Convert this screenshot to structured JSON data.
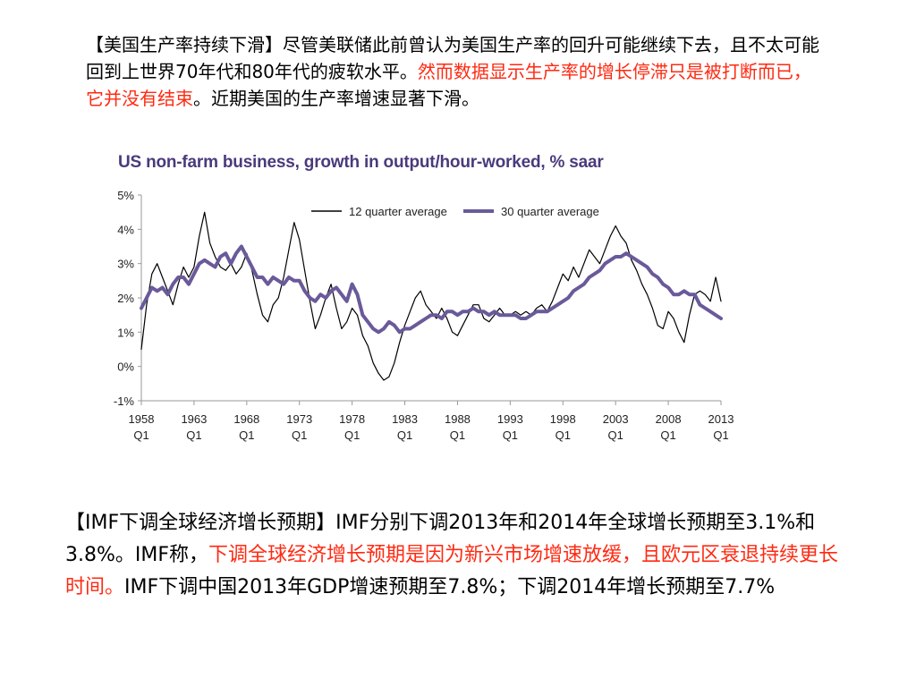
{
  "para1": {
    "text_a": "【美国生产率持续下滑】尽管美联储此前曾认为美国生产率的回升可能继续下去，且不太可能回到上世界70年代和80年代的疲软水平。",
    "text_red": "然而数据显示生产率的增长停滞只是被打断而已，它并没有结束",
    "text_b": "。近期美国的生产率增速显著下滑。"
  },
  "para2": {
    "text_a": "【IMF下调全球经济增长预期】IMF分别下调2013年和2014年全球增长预期至3.1%和3.8%。IMF称，",
    "text_red": "下调全球经济增长预期是因为新兴市场增速放缓，且欧元区衰退持续更长时间。",
    "text_b": "IMF下调中国2013年GDP增速预期至7.8%；下调2014年增长预期至7.7%"
  },
  "colors": {
    "red_text": "#ff2a12",
    "title": "#4b3a7c",
    "line_thin": "#000000",
    "line_thick": "#6a5a9a"
  },
  "chart_data": {
    "type": "line",
    "title": "US non-farm business, growth in output/hour-worked, % saar",
    "x_tick_years": [
      1958,
      1963,
      1968,
      1973,
      1978,
      1983,
      1988,
      1993,
      1998,
      2003,
      2008,
      2013
    ],
    "x_tick_labels": [
      "1958",
      "1963",
      "1968",
      "1973",
      "1978",
      "1983",
      "1988",
      "1993",
      "1998",
      "2003",
      "2008",
      "2013"
    ],
    "x_tick_sub": "Q1",
    "y_ticks": [
      5,
      4,
      3,
      2,
      1,
      0,
      -1
    ],
    "y_tick_labels": [
      "5%",
      "4%",
      "3%",
      "2%",
      "1%",
      "0%",
      "-1%"
    ],
    "ylim": [
      -1,
      5
    ],
    "xlim": [
      1958,
      2013
    ],
    "legend": {
      "placement": "top-right"
    },
    "series": [
      {
        "name": "12 quarter average",
        "x": [
          1958.0,
          1958.5,
          1959.0,
          1959.5,
          1960.0,
          1960.5,
          1961.0,
          1961.5,
          1962.0,
          1962.5,
          1963.0,
          1963.5,
          1964.0,
          1964.5,
          1965.0,
          1965.5,
          1966.0,
          1966.5,
          1967.0,
          1967.5,
          1968.0,
          1968.5,
          1969.0,
          1969.5,
          1970.0,
          1970.5,
          1971.0,
          1971.5,
          1972.0,
          1972.5,
          1973.0,
          1973.5,
          1974.0,
          1974.5,
          1975.0,
          1975.5,
          1976.0,
          1976.5,
          1977.0,
          1977.5,
          1978.0,
          1978.5,
          1979.0,
          1979.5,
          1980.0,
          1980.5,
          1981.0,
          1981.5,
          1982.0,
          1982.5,
          1983.0,
          1983.5,
          1984.0,
          1984.5,
          1985.0,
          1985.5,
          1986.0,
          1986.5,
          1987.0,
          1987.5,
          1988.0,
          1988.5,
          1989.0,
          1989.5,
          1990.0,
          1990.5,
          1991.0,
          1991.5,
          1992.0,
          1992.5,
          1993.0,
          1993.5,
          1994.0,
          1994.5,
          1995.0,
          1995.5,
          1996.0,
          1996.5,
          1997.0,
          1997.5,
          1998.0,
          1998.5,
          1999.0,
          1999.5,
          2000.0,
          2000.5,
          2001.0,
          2001.5,
          2002.0,
          2002.5,
          2003.0,
          2003.5,
          2004.0,
          2004.5,
          2005.0,
          2005.5,
          2006.0,
          2006.5,
          2007.0,
          2007.5,
          2008.0,
          2008.5,
          2009.0,
          2009.5,
          2010.0,
          2010.5,
          2011.0,
          2011.5,
          2012.0,
          2012.5,
          2013.0
        ],
        "values": [
          0.5,
          1.8,
          2.7,
          3.0,
          2.6,
          2.2,
          1.8,
          2.4,
          2.9,
          2.6,
          2.9,
          3.8,
          4.5,
          3.6,
          3.2,
          2.9,
          2.8,
          3.0,
          2.7,
          2.9,
          3.3,
          2.8,
          2.1,
          1.5,
          1.3,
          1.8,
          2.0,
          2.6,
          3.4,
          4.2,
          3.7,
          2.8,
          1.9,
          1.1,
          1.5,
          2.0,
          2.4,
          1.7,
          1.1,
          1.3,
          1.7,
          1.5,
          0.9,
          0.6,
          0.1,
          -0.2,
          -0.4,
          -0.3,
          0.1,
          0.7,
          1.2,
          1.6,
          2.0,
          2.2,
          1.8,
          1.6,
          1.4,
          1.7,
          1.4,
          1.0,
          0.9,
          1.2,
          1.5,
          1.8,
          1.8,
          1.4,
          1.3,
          1.5,
          1.7,
          1.5,
          1.5,
          1.6,
          1.5,
          1.6,
          1.5,
          1.7,
          1.8,
          1.6,
          1.9,
          2.3,
          2.7,
          2.5,
          2.9,
          2.6,
          3.0,
          3.4,
          3.2,
          3.0,
          3.4,
          3.8,
          4.1,
          3.8,
          3.6,
          3.1,
          2.8,
          2.4,
          2.1,
          1.7,
          1.2,
          1.1,
          1.6,
          1.4,
          1.0,
          0.7,
          1.5,
          2.1,
          2.2,
          2.1,
          1.9,
          2.6,
          1.9
        ]
      },
      {
        "name": "30 quarter average",
        "x": [
          1958.0,
          1958.5,
          1959.0,
          1959.5,
          1960.0,
          1960.5,
          1961.0,
          1961.5,
          1962.0,
          1962.5,
          1963.0,
          1963.5,
          1964.0,
          1964.5,
          1965.0,
          1965.5,
          1966.0,
          1966.5,
          1967.0,
          1967.5,
          1968.0,
          1968.5,
          1969.0,
          1969.5,
          1970.0,
          1970.5,
          1971.0,
          1971.5,
          1972.0,
          1972.5,
          1973.0,
          1973.5,
          1974.0,
          1974.5,
          1975.0,
          1975.5,
          1976.0,
          1976.5,
          1977.0,
          1977.5,
          1978.0,
          1978.5,
          1979.0,
          1979.5,
          1980.0,
          1980.5,
          1981.0,
          1981.5,
          1982.0,
          1982.5,
          1983.0,
          1983.5,
          1984.0,
          1984.5,
          1985.0,
          1985.5,
          1986.0,
          1986.5,
          1987.0,
          1987.5,
          1988.0,
          1988.5,
          1989.0,
          1989.5,
          1990.0,
          1990.5,
          1991.0,
          1991.5,
          1992.0,
          1992.5,
          1993.0,
          1993.5,
          1994.0,
          1994.5,
          1995.0,
          1995.5,
          1996.0,
          1996.5,
          1997.0,
          1997.5,
          1998.0,
          1998.5,
          1999.0,
          1999.5,
          2000.0,
          2000.5,
          2001.0,
          2001.5,
          2002.0,
          2002.5,
          2003.0,
          2003.5,
          2004.0,
          2004.5,
          2005.0,
          2005.5,
          2006.0,
          2006.5,
          2007.0,
          2007.5,
          2008.0,
          2008.5,
          2009.0,
          2009.5,
          2010.0,
          2010.5,
          2011.0,
          2011.5,
          2012.0,
          2012.5,
          2013.0
        ],
        "values": [
          1.7,
          2.0,
          2.3,
          2.2,
          2.3,
          2.1,
          2.4,
          2.6,
          2.6,
          2.4,
          2.7,
          3.0,
          3.1,
          3.0,
          2.9,
          3.2,
          3.3,
          3.0,
          3.3,
          3.5,
          3.2,
          2.9,
          2.6,
          2.6,
          2.4,
          2.6,
          2.5,
          2.4,
          2.6,
          2.5,
          2.5,
          2.2,
          2.0,
          1.9,
          2.1,
          2.0,
          2.2,
          2.3,
          2.1,
          1.9,
          2.4,
          2.1,
          1.5,
          1.3,
          1.1,
          1.0,
          1.1,
          1.3,
          1.2,
          1.0,
          1.1,
          1.1,
          1.2,
          1.3,
          1.4,
          1.5,
          1.5,
          1.4,
          1.6,
          1.6,
          1.5,
          1.6,
          1.6,
          1.7,
          1.6,
          1.6,
          1.5,
          1.6,
          1.5,
          1.5,
          1.5,
          1.5,
          1.4,
          1.4,
          1.5,
          1.6,
          1.6,
          1.6,
          1.7,
          1.8,
          1.9,
          2.0,
          2.2,
          2.3,
          2.4,
          2.6,
          2.7,
          2.8,
          3.0,
          3.1,
          3.2,
          3.2,
          3.3,
          3.2,
          3.1,
          3.0,
          2.9,
          2.7,
          2.6,
          2.4,
          2.3,
          2.1,
          2.1,
          2.2,
          2.1,
          2.1,
          1.8,
          1.7,
          1.6,
          1.5,
          1.4
        ]
      }
    ]
  }
}
